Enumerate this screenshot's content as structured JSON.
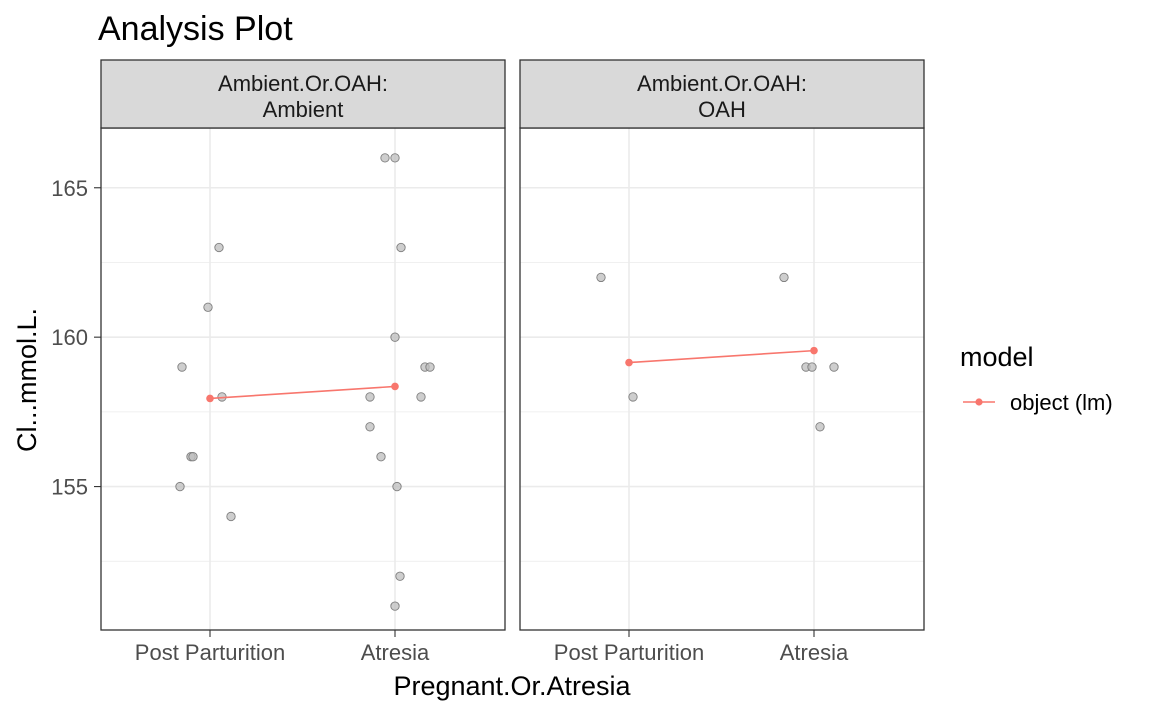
{
  "chart_data": {
    "type": "scatter",
    "title": "Analysis Plot",
    "xlabel": "Pregnant.Or.Atresia",
    "ylabel": "Cl...mmol.L.",
    "categories": [
      "Post Parturition",
      "Atresia"
    ],
    "ylim": [
      150.2,
      167.0
    ],
    "yticks": [
      155,
      160,
      165
    ],
    "grid": true,
    "legend": {
      "title": "model",
      "placement": "right",
      "entries": [
        {
          "label": "object (lm)",
          "color": "#F8766D"
        }
      ]
    },
    "facet_label_prefix": "Ambient.Or.OAH:",
    "panels": [
      {
        "facet": "Ambient",
        "points": [
          {
            "x": "Post Parturition",
            "y": 163
          },
          {
            "x": "Post Parturition",
            "y": 161
          },
          {
            "x": "Post Parturition",
            "y": 159
          },
          {
            "x": "Post Parturition",
            "y": 158
          },
          {
            "x": "Post Parturition",
            "y": 156
          },
          {
            "x": "Post Parturition",
            "y": 156
          },
          {
            "x": "Post Parturition",
            "y": 155
          },
          {
            "x": "Post Parturition",
            "y": 154
          },
          {
            "x": "Atresia",
            "y": 166
          },
          {
            "x": "Atresia",
            "y": 166
          },
          {
            "x": "Atresia",
            "y": 163
          },
          {
            "x": "Atresia",
            "y": 160
          },
          {
            "x": "Atresia",
            "y": 159
          },
          {
            "x": "Atresia",
            "y": 159
          },
          {
            "x": "Atresia",
            "y": 158
          },
          {
            "x": "Atresia",
            "y": 158
          },
          {
            "x": "Atresia",
            "y": 157
          },
          {
            "x": "Atresia",
            "y": 156
          },
          {
            "x": "Atresia",
            "y": 155
          },
          {
            "x": "Atresia",
            "y": 152
          },
          {
            "x": "Atresia",
            "y": 151
          }
        ],
        "model": {
          "name": "object (lm)",
          "values": [
            157.95,
            158.35
          ]
        }
      },
      {
        "facet": "OAH",
        "points": [
          {
            "x": "Post Parturition",
            "y": 162
          },
          {
            "x": "Post Parturition",
            "y": 158
          },
          {
            "x": "Atresia",
            "y": 162
          },
          {
            "x": "Atresia",
            "y": 159
          },
          {
            "x": "Atresia",
            "y": 159
          },
          {
            "x": "Atresia",
            "y": 159
          },
          {
            "x": "Atresia",
            "y": 157
          }
        ],
        "model": {
          "name": "object (lm)",
          "values": [
            159.15,
            159.55
          ]
        }
      }
    ],
    "colors": {
      "point_fill": "#bdbdbd",
      "point_stroke": "#7f7f7f",
      "model": "#F8766D",
      "strip": "#d9d9d9",
      "grid": "#ebebeb"
    }
  }
}
